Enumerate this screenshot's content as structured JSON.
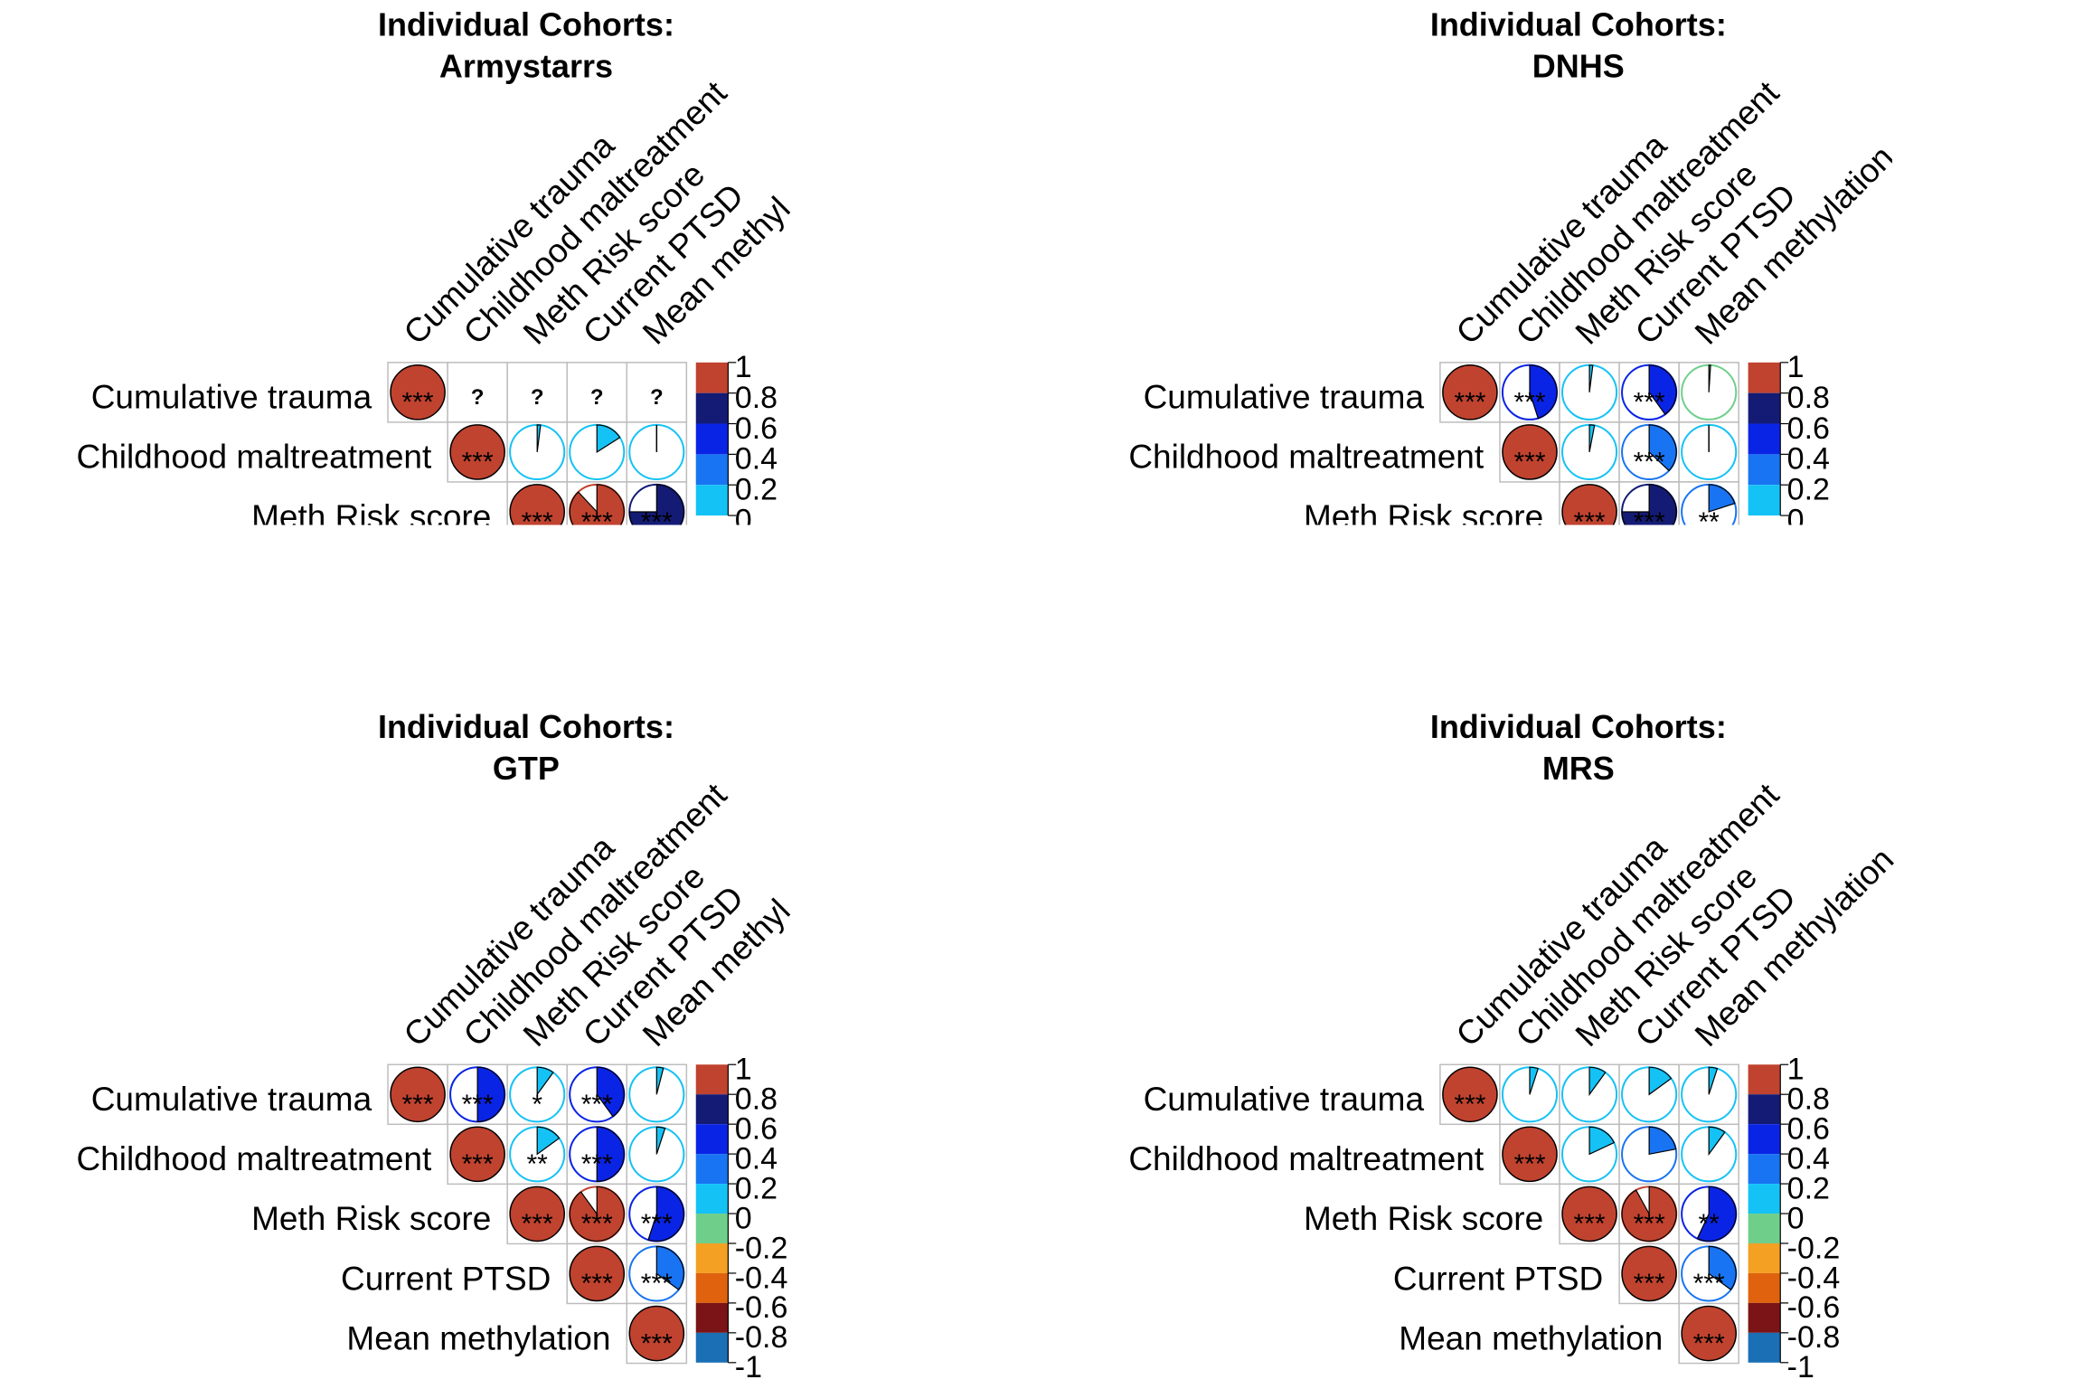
{
  "chart_data": [
    {
      "type": "heatmap",
      "title": "Individual Cohorts:",
      "subtitle": "Armystarrs",
      "variables": [
        "Cumulative trauma",
        "Childhood maltreatment",
        "Meth Risk score",
        "Current PTSD",
        "Mean methylation"
      ],
      "column_labels": [
        "Cumulative trauma",
        "Childhood maltreatment",
        "Meth Risk score",
        "Current PTSD",
        "Mean methyl"
      ],
      "visible_rows": 3,
      "legend": {
        "placement": "right",
        "ticks": [
          "1",
          "0.8",
          "0.6",
          "0.4",
          "0.2",
          "0"
        ]
      },
      "cells": [
        [
          {
            "r": 1,
            "sig": "***"
          },
          {
            "r": null,
            "sig": "?"
          },
          {
            "r": null,
            "sig": "?"
          },
          {
            "r": null,
            "sig": "?"
          },
          {
            "r": null,
            "sig": "?"
          }
        ],
        [
          null,
          {
            "r": 1,
            "sig": "***"
          },
          {
            "r": 0.02,
            "sig": ""
          },
          {
            "r": 0.16,
            "sig": ""
          },
          {
            "r": 0.0,
            "sig": ""
          }
        ],
        [
          null,
          null,
          {
            "r": 1,
            "sig": "***"
          },
          {
            "r": 0.88,
            "sig": "***"
          },
          {
            "r": 0.75,
            "sig": "***"
          }
        ]
      ]
    },
    {
      "type": "heatmap",
      "title": "Individual Cohorts:",
      "subtitle": "DNHS",
      "variables": [
        "Cumulative trauma",
        "Childhood maltreatment",
        "Meth Risk score",
        "Current PTSD",
        "Mean methylation"
      ],
      "column_labels": [
        "Cumulative trauma",
        "Childhood maltreatment",
        "Meth Risk score",
        "Current PTSD",
        "Mean methylation"
      ],
      "visible_rows": 3,
      "legend": {
        "placement": "right",
        "ticks": [
          "1",
          "0.8",
          "0.6",
          "0.4",
          "0.2",
          "0"
        ]
      },
      "cells": [
        [
          {
            "r": 1,
            "sig": "***"
          },
          {
            "r": 0.45,
            "sig": "***"
          },
          {
            "r": 0.02,
            "sig": ""
          },
          {
            "r": 0.4,
            "sig": "***"
          },
          {
            "r": -0.01,
            "sig": ""
          }
        ],
        [
          null,
          {
            "r": 1,
            "sig": "***"
          },
          {
            "r": 0.03,
            "sig": ""
          },
          {
            "r": 0.37,
            "sig": "***"
          },
          {
            "r": 0.0,
            "sig": ""
          }
        ],
        [
          null,
          null,
          {
            "r": 1,
            "sig": "***"
          },
          {
            "r": 0.75,
            "sig": "***"
          },
          {
            "r": 0.2,
            "sig": "**"
          }
        ]
      ]
    },
    {
      "type": "heatmap",
      "title": "Individual Cohorts:",
      "subtitle": "GTP",
      "variables": [
        "Cumulative trauma",
        "Childhood maltreatment",
        "Meth Risk score",
        "Current PTSD",
        "Mean methylation"
      ],
      "column_labels": [
        "Cumulative trauma",
        "Childhood maltreatment",
        "Meth Risk score",
        "Current PTSD",
        "Mean methyl"
      ],
      "visible_rows": 5,
      "legend": {
        "placement": "right",
        "ticks": [
          "1",
          "0.8",
          "0.6",
          "0.4",
          "0.2",
          "0",
          "-0.2",
          "-0.4",
          "-0.6",
          "-0.8",
          "-1"
        ]
      },
      "cells": [
        [
          {
            "r": 1,
            "sig": "***"
          },
          {
            "r": 0.5,
            "sig": "***"
          },
          {
            "r": 0.1,
            "sig": "*"
          },
          {
            "r": 0.4,
            "sig": "***"
          },
          {
            "r": 0.04,
            "sig": ""
          }
        ],
        [
          null,
          {
            "r": 1,
            "sig": "***"
          },
          {
            "r": 0.15,
            "sig": "**"
          },
          {
            "r": 0.5,
            "sig": "***"
          },
          {
            "r": 0.05,
            "sig": ""
          }
        ],
        [
          null,
          null,
          {
            "r": 1,
            "sig": "***"
          },
          {
            "r": 0.9,
            "sig": "***"
          },
          {
            "r": 0.55,
            "sig": "***"
          }
        ],
        [
          null,
          null,
          null,
          {
            "r": 1,
            "sig": "***"
          },
          {
            "r": 0.35,
            "sig": "***"
          }
        ],
        [
          null,
          null,
          null,
          null,
          {
            "r": 1,
            "sig": "***"
          }
        ]
      ]
    },
    {
      "type": "heatmap",
      "title": "Individual Cohorts:",
      "subtitle": "MRS",
      "variables": [
        "Cumulative trauma",
        "Childhood maltreatment",
        "Meth Risk score",
        "Current PTSD",
        "Mean methylation"
      ],
      "column_labels": [
        "Cumulative trauma",
        "Childhood maltreatment",
        "Meth Risk score",
        "Current PTSD",
        "Mean methylation"
      ],
      "visible_rows": 5,
      "legend": {
        "placement": "right",
        "ticks": [
          "1",
          "0.8",
          "0.6",
          "0.4",
          "0.2",
          "0",
          "-0.2",
          "-0.4",
          "-0.6",
          "-0.8",
          "-1"
        ]
      },
      "cells": [
        [
          {
            "r": 1,
            "sig": "***"
          },
          {
            "r": 0.05,
            "sig": ""
          },
          {
            "r": 0.1,
            "sig": ""
          },
          {
            "r": 0.15,
            "sig": ""
          },
          {
            "r": 0.05,
            "sig": ""
          }
        ],
        [
          null,
          {
            "r": 1,
            "sig": "***"
          },
          {
            "r": 0.18,
            "sig": ""
          },
          {
            "r": 0.22,
            "sig": ""
          },
          {
            "r": 0.1,
            "sig": ""
          }
        ],
        [
          null,
          null,
          {
            "r": 1,
            "sig": "***"
          },
          {
            "r": 0.92,
            "sig": "***"
          },
          {
            "r": 0.57,
            "sig": "**"
          }
        ],
        [
          null,
          null,
          null,
          {
            "r": 1,
            "sig": "***"
          },
          {
            "r": 0.35,
            "sig": "***"
          }
        ],
        [
          null,
          null,
          null,
          null,
          {
            "r": 1,
            "sig": "***"
          }
        ]
      ]
    }
  ],
  "colors": {
    "pos_1_0.8": "#c0432f",
    "pos_0.8_0.6": "#141b75",
    "pos_0.6_0.4": "#0a24e6",
    "pos_0.4_0.2": "#1874f2",
    "pos_0.2_0": "#15c2f5",
    "neg_0_-0.2": "#6fcf8a",
    "neg_-0.2_-0.4": "#f3a023",
    "neg_-0.4_-0.6": "#e0620e",
    "neg_-0.6_-0.8": "#7a1416",
    "neg_-0.8_-1": "#1a6fb5",
    "grid": "#bdbdbd"
  }
}
